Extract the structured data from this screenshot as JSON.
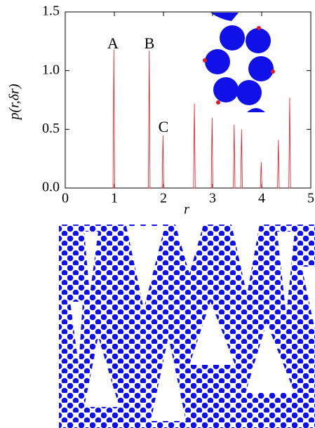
{
  "chart_data": {
    "type": "spike",
    "x_label": "r",
    "y_label": "p(r,δr)",
    "annotations": [
      "A",
      "B",
      "C"
    ],
    "x": [
      0.99,
      1.71,
      1.99,
      2.63,
      2.99,
      3.44,
      3.59,
      3.99,
      4.34,
      4.57
    ],
    "values": [
      1.18,
      1.17,
      0.45,
      0.72,
      0.6,
      0.54,
      0.5,
      0.22,
      0.41,
      0.77
    ],
    "color": "#e8141e",
    "xlim": [
      0,
      5
    ],
    "xticks": [
      0,
      1,
      2,
      3,
      4,
      5
    ],
    "ylim": [
      0,
      1.5
    ],
    "yticks": [
      {
        "value": 0,
        "label": "0.0"
      },
      {
        "value": 0.5,
        "label": "0.5"
      },
      {
        "value": 1,
        "label": "1.0"
      },
      {
        "value": 1.5,
        "label": "1.5"
      }
    ]
  }
}
